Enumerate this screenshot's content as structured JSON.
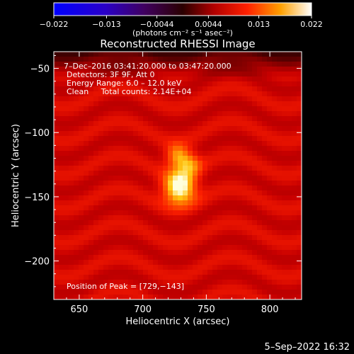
{
  "chart_data": {
    "type": "heatmap",
    "title": "Reconstructed RHESSI Image",
    "xlabel": "Heliocentric X (arcsec)",
    "ylabel": "Heliocentric Y (arcsec)",
    "xlim": [
      630,
      825
    ],
    "ylim": [
      -230,
      -37
    ],
    "x_ticks": [
      650,
      700,
      750,
      800
    ],
    "y_ticks": [
      -50,
      -100,
      -150,
      -200
    ],
    "x_tick_labels": [
      "650",
      "700",
      "750",
      "800"
    ],
    "y_tick_labels": [
      "−50",
      "−100",
      "−150",
      "−200"
    ],
    "grid": false,
    "colorbar": {
      "colormap": "hot (black-blue-red-yellow-white)",
      "range": [
        -0.022,
        0.022
      ],
      "ticks": [
        -0.022,
        -0.013,
        -0.0044,
        0.0044,
        0.013,
        0.022
      ],
      "tick_labels": [
        "−0.022",
        "−0.013",
        "−0.0044",
        "0.0044",
        "0.013",
        "0.022"
      ],
      "unit_label": "(photons cm⁻² s⁻¹ asec⁻²)"
    },
    "annotations": {
      "time": " 7–Dec–2016 03:41:20.000 to 03:47:20.000",
      "detectors": "Detectors: 3F 9F, Att 0",
      "energy": "Energy Range: 6.0 – 12.0 keV",
      "clean": "Clean     Total counts: 2.14E+04",
      "peak": "Position of Peak = [729,−143]"
    },
    "sources": [
      {
        "x": 729,
        "y": -143,
        "peak": 0.022
      },
      {
        "x": 727,
        "y": -118,
        "peak": 0.012
      },
      {
        "x": 737,
        "y": -124,
        "peak": 0.01
      }
    ]
  },
  "footer": {
    "date": "5–Sep–2022 16:32"
  },
  "colors": {
    "background": "#000000",
    "text": "#ffffff"
  }
}
